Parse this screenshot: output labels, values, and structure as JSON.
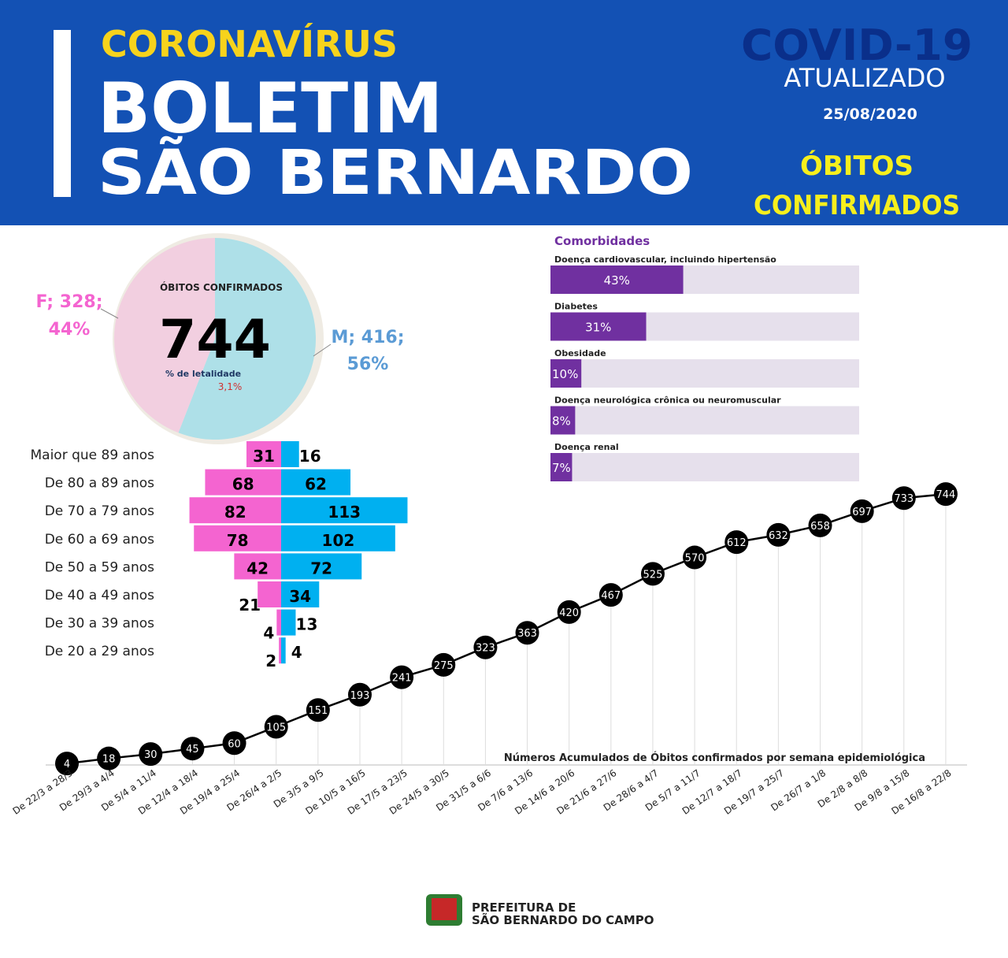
{
  "header": {
    "kicker": "CORONAVÍRUS",
    "title_line1": "BOLETIM",
    "title_line2": "SÃO BERNARDO",
    "badge_line1": "COVID-19",
    "badge_line2": "ATUALIZADO",
    "date": "25/08/2020",
    "section_line1": "ÓBITOS",
    "section_line2": "CONFIRMADOS"
  },
  "footer": {
    "line1": "PREFEITURA DE",
    "line2": "SÃO BERNARDO DO CAMPO"
  },
  "chart_data": [
    {
      "type": "pie",
      "categories": [
        "F",
        "M"
      ],
      "values": [
        328,
        416
      ],
      "labels": [
        "F; 328;",
        "M; 416;"
      ],
      "percent_labels": [
        "44%",
        "56%"
      ],
      "colors": [
        "#f2cfe0",
        "#aee0e8"
      ],
      "center_title": "ÓBITOS CONFIRMADOS",
      "center_value": 744,
      "center_note": "% de letalidade",
      "center_rate": {
        "value": 3.1,
        "label": "3,1%"
      }
    },
    {
      "type": "bar",
      "orientation": "diverging",
      "categories": [
        "Maior que 89 anos",
        "De 80 a 89 anos",
        "De 70 a 79 anos",
        "De 60 a 69 anos",
        "De 50 a 59 anos",
        "De 40 a 49 anos",
        "De 30 a 39 anos",
        "De 20 a 29 anos"
      ],
      "series": [
        {
          "color": "#f464d0",
          "values": [
            31,
            68,
            82,
            78,
            42,
            21,
            4,
            2
          ]
        },
        {
          "color": "#00b0f0",
          "values": [
            16,
            62,
            113,
            102,
            72,
            34,
            13,
            4
          ]
        }
      ]
    },
    {
      "type": "bar",
      "orientation": "horizontal",
      "title": "Comorbidades",
      "categories": [
        "Doença cardiovascular, incluindo hipertensão",
        "Diabetes",
        "Obesidade",
        "Doença neurológica crônica ou neuromuscular",
        "Doença renal"
      ],
      "values": [
        43,
        31,
        10,
        8,
        7
      ],
      "value_labels": [
        "43%",
        "31%",
        "10%",
        "8%",
        "7%"
      ],
      "xlim": [
        0,
        100
      ],
      "color": "#7030a0",
      "track_color": "#e6e0ec"
    },
    {
      "type": "line",
      "title": "Números Acumulados de Óbitos confirmados por semana epidemiológica",
      "categories": [
        "De 22/3 a 28/3",
        "De 29/3 a 4/4",
        "De 5/4 a 11/4",
        "De 12/4 a 18/4",
        "De 19/4 a 25/4",
        "De 26/4 a 2/5",
        "De 3/5 a 9/5",
        "De 10/5 a 16/5",
        "De 17/5 a 23/5",
        "De 24/5 a 30/5",
        "De 31/5 a 6/6",
        "De 7/6 a 13/6",
        "De 14/6 a 20/6",
        "De 21/6 a 27/6",
        "De 28/6 a 4/7",
        "De 5/7 a 11/7",
        "De 12/7 a 18/7",
        "De 19/7 a 25/7",
        "De 26/7 a 1/8",
        "De 2/8 a 8/8",
        "De 9/8 a 15/8",
        "De 16/8 a 22/8"
      ],
      "values": [
        4,
        18,
        30,
        45,
        60,
        105,
        151,
        193,
        241,
        275,
        323,
        363,
        420,
        467,
        525,
        570,
        612,
        632,
        658,
        697,
        733,
        744
      ],
      "color": "#000000"
    }
  ]
}
